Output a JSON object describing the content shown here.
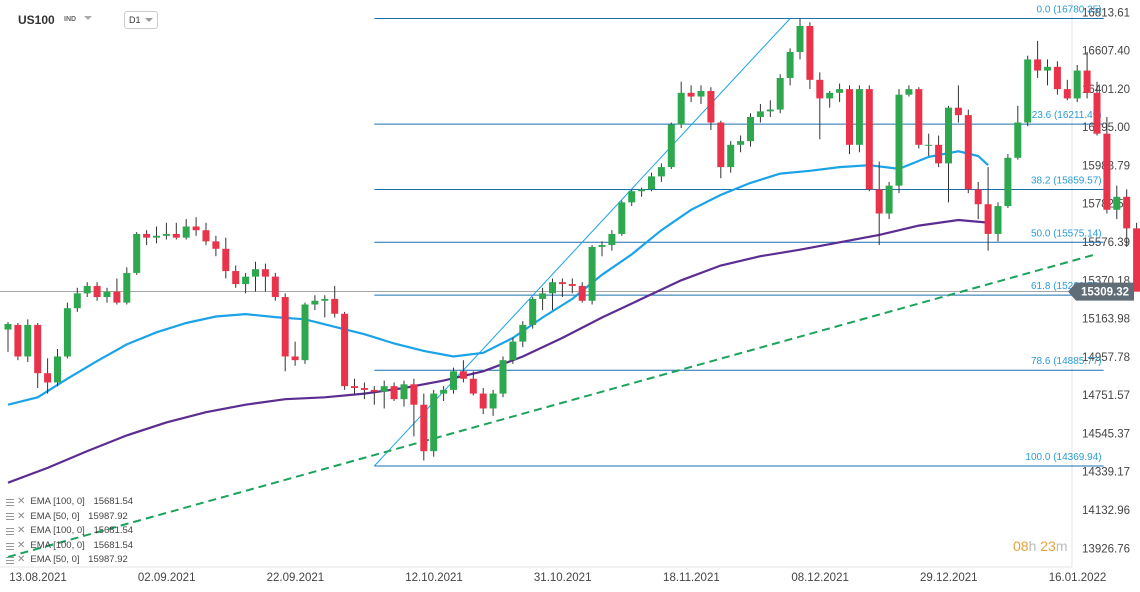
{
  "header": {
    "symbol": "US100",
    "instrument_type": "IND",
    "timeframe": "D1"
  },
  "countdown": {
    "hours": "08",
    "h_label": "h",
    "minutes": "23",
    "m_label": "m"
  },
  "colors": {
    "up": "#2ea84f",
    "down": "#e8334a",
    "ema50": "#1aa3e8",
    "ema100": "#5b2d91",
    "fib": "#1a6fae",
    "fib_text": "#2a9ad8",
    "trendline": "#1aa35a",
    "price_tag": "#606c76"
  },
  "legend": [
    {
      "label": "EMA [100,  0]",
      "value": "15681.54"
    },
    {
      "label": "EMA [50,  0]",
      "value": "15987.92"
    },
    {
      "label": "EMA [100,  0]",
      "value": "15681.54"
    },
    {
      "label": "EMA [100,  0]",
      "value": "15681.54"
    },
    {
      "label": "EMA [50,  0]",
      "value": "15987.92"
    }
  ],
  "chart_data": {
    "type": "candlestick",
    "title": "US100",
    "timeframe": "D1",
    "ylim": [
      13826,
      16880
    ],
    "y_ticks": [
      "16813.61",
      "16607.40",
      "16401.20",
      "16195.00",
      "15988.79",
      "15782.59",
      "15576.39",
      "15370.18",
      "15163.98",
      "14957.78",
      "14751.57",
      "14545.37",
      "14339.17",
      "14132.96",
      "13926.76"
    ],
    "x_ticks": [
      {
        "label": "13.08.2021",
        "i": 0
      },
      {
        "label": "02.09.2021",
        "i": 13
      },
      {
        "label": "22.09.2021",
        "i": 26
      },
      {
        "label": "12.10.2021",
        "i": 40
      },
      {
        "label": "31.10.2021",
        "i": 53
      },
      {
        "label": "18.11.2021",
        "i": 66
      },
      {
        "label": "08.12.2021",
        "i": 79
      },
      {
        "label": "29.12.2021",
        "i": 92
      },
      {
        "label": "16.01.2022",
        "i": 105
      }
    ],
    "current_price": "15309.32",
    "candles": [
      [
        15105,
        15145,
        14985,
        15135
      ],
      [
        15130,
        15140,
        14940,
        14960
      ],
      [
        14960,
        15160,
        14930,
        15130
      ],
      [
        15130,
        15140,
        14790,
        14870
      ],
      [
        14870,
        14950,
        14760,
        14820
      ],
      [
        14820,
        15000,
        14800,
        14960
      ],
      [
        14960,
        15250,
        14950,
        15220
      ],
      [
        15220,
        15330,
        15200,
        15300
      ],
      [
        15300,
        15360,
        15280,
        15340
      ],
      [
        15340,
        15360,
        15260,
        15280
      ],
      [
        15280,
        15330,
        15250,
        15310
      ],
      [
        15310,
        15380,
        15240,
        15250
      ],
      [
        15250,
        15440,
        15240,
        15410
      ],
      [
        15410,
        15630,
        15400,
        15620
      ],
      [
        15620,
        15640,
        15560,
        15600
      ],
      [
        15600,
        15660,
        15570,
        15610
      ],
      [
        15610,
        15680,
        15590,
        15620
      ],
      [
        15620,
        15680,
        15590,
        15600
      ],
      [
        15600,
        15700,
        15590,
        15660
      ],
      [
        15660,
        15710,
        15610,
        15640
      ],
      [
        15640,
        15680,
        15560,
        15580
      ],
      [
        15580,
        15610,
        15500,
        15540
      ],
      [
        15540,
        15600,
        15380,
        15420
      ],
      [
        15420,
        15450,
        15330,
        15350
      ],
      [
        15350,
        15410,
        15300,
        15390
      ],
      [
        15390,
        15470,
        15310,
        15430
      ],
      [
        15430,
        15460,
        15310,
        15390
      ],
      [
        15390,
        15410,
        15260,
        15280
      ],
      [
        15280,
        15300,
        14880,
        14960
      ],
      [
        14960,
        15040,
        14910,
        14940
      ],
      [
        14940,
        15250,
        14920,
        15240
      ],
      [
        15240,
        15290,
        15210,
        15260
      ],
      [
        15260,
        15290,
        15170,
        15270
      ],
      [
        15270,
        15340,
        15170,
        15190
      ],
      [
        15190,
        15200,
        14780,
        14800
      ],
      [
        14800,
        14840,
        14760,
        14790
      ],
      [
        14790,
        14820,
        14730,
        14780
      ],
      [
        14780,
        14800,
        14700,
        14770
      ],
      [
        14770,
        14830,
        14680,
        14800
      ],
      [
        14800,
        14820,
        14720,
        14730
      ],
      [
        14730,
        14830,
        14690,
        14810
      ],
      [
        14810,
        14840,
        14530,
        14700
      ],
      [
        14700,
        14760,
        14400,
        14450
      ],
      [
        14450,
        14780,
        14420,
        14760
      ],
      [
        14760,
        14800,
        14720,
        14780
      ],
      [
        14780,
        14900,
        14760,
        14880
      ],
      [
        14880,
        14940,
        14820,
        14840
      ],
      [
        14840,
        14880,
        14750,
        14760
      ],
      [
        14760,
        14790,
        14650,
        14680
      ],
      [
        14680,
        14780,
        14640,
        14760
      ],
      [
        14760,
        14960,
        14740,
        14940
      ],
      [
        14940,
        15060,
        14920,
        15040
      ],
      [
        15040,
        15150,
        15010,
        15130
      ],
      [
        15130,
        15280,
        15110,
        15270
      ],
      [
        15270,
        15330,
        15210,
        15300
      ],
      [
        15300,
        15380,
        15210,
        15360
      ],
      [
        15360,
        15380,
        15280,
        15350
      ],
      [
        15350,
        15380,
        15300,
        15340
      ],
      [
        15340,
        15360,
        15250,
        15260
      ],
      [
        15260,
        15560,
        15240,
        15550
      ],
      [
        15550,
        15580,
        15500,
        15560
      ],
      [
        15560,
        15640,
        15530,
        15620
      ],
      [
        15620,
        15800,
        15610,
        15790
      ],
      [
        15790,
        15860,
        15770,
        15850
      ],
      [
        15850,
        15870,
        15820,
        15860
      ],
      [
        15860,
        15950,
        15850,
        15930
      ],
      [
        15930,
        16000,
        15900,
        15980
      ],
      [
        15980,
        16220,
        15970,
        16210
      ],
      [
        16210,
        16440,
        16190,
        16380
      ],
      [
        16380,
        16420,
        16330,
        16360
      ],
      [
        16360,
        16420,
        16320,
        16390
      ],
      [
        16390,
        16410,
        16180,
        16220
      ],
      [
        16220,
        16230,
        15920,
        15980
      ],
      [
        15980,
        16120,
        15950,
        16100
      ],
      [
        16100,
        16150,
        16060,
        16120
      ],
      [
        16120,
        16270,
        16090,
        16250
      ],
      [
        16250,
        16320,
        16220,
        16280
      ],
      [
        16280,
        16340,
        16250,
        16290
      ],
      [
        16290,
        16480,
        16270,
        16460
      ],
      [
        16460,
        16620,
        16420,
        16600
      ],
      [
        16600,
        16780,
        16560,
        16740
      ],
      [
        16740,
        16760,
        16400,
        16450
      ],
      [
        16450,
        16490,
        16130,
        16350
      ],
      [
        16350,
        16390,
        16300,
        16380
      ],
      [
        16380,
        16430,
        16330,
        16400
      ],
      [
        16400,
        16420,
        16050,
        16100
      ],
      [
        16100,
        16420,
        16060,
        16400
      ],
      [
        16400,
        16420,
        15850,
        15860
      ],
      [
        15860,
        16010,
        15560,
        15730
      ],
      [
        15730,
        15900,
        15700,
        15880
      ],
      [
        15880,
        16400,
        15840,
        16370
      ],
      [
        16370,
        16420,
        16360,
        16400
      ],
      [
        16400,
        16410,
        16080,
        16100
      ],
      [
        16100,
        16160,
        16040,
        16100
      ],
      [
        16100,
        16150,
        15980,
        16000
      ],
      [
        16000,
        16310,
        15790,
        16300
      ],
      [
        16300,
        16420,
        16220,
        16260
      ],
      [
        16260,
        16290,
        15840,
        15860
      ],
      [
        15860,
        15900,
        15700,
        15780
      ],
      [
        15780,
        15980,
        15530,
        15620
      ],
      [
        15620,
        15790,
        15580,
        15770
      ],
      [
        15770,
        16050,
        15760,
        16030
      ],
      [
        16030,
        16310,
        16020,
        16220
      ],
      [
        16220,
        16580,
        16200,
        16560
      ],
      [
        16560,
        16660,
        16460,
        16500
      ],
      [
        16500,
        16560,
        16420,
        16520
      ],
      [
        16520,
        16550,
        16370,
        16400
      ],
      [
        16400,
        16450,
        16340,
        16350
      ],
      [
        16350,
        16530,
        16330,
        16500
      ],
      [
        16500,
        16600,
        16350,
        16380
      ],
      [
        16380,
        16440,
        16150,
        16160
      ],
      [
        16160,
        16250,
        15730,
        15750
      ],
      [
        15750,
        15880,
        15700,
        15820
      ],
      [
        15820,
        15860,
        15550,
        15650
      ],
      [
        15650,
        15680,
        15309,
        15309
      ]
    ],
    "ema50": [
      [
        0,
        14700
      ],
      [
        3,
        14740
      ],
      [
        6,
        14840
      ],
      [
        9,
        14935
      ],
      [
        12,
        15025
      ],
      [
        15,
        15090
      ],
      [
        18,
        15140
      ],
      [
        21,
        15175
      ],
      [
        24,
        15188
      ],
      [
        27,
        15172
      ],
      [
        30,
        15160
      ],
      [
        33,
        15120
      ],
      [
        36,
        15080
      ],
      [
        39,
        15030
      ],
      [
        42,
        14990
      ],
      [
        45,
        14960
      ],
      [
        48,
        14980
      ],
      [
        51,
        15060
      ],
      [
        54,
        15170
      ],
      [
        57,
        15270
      ],
      [
        60,
        15400
      ],
      [
        63,
        15510
      ],
      [
        66,
        15640
      ],
      [
        69,
        15750
      ],
      [
        72,
        15830
      ],
      [
        75,
        15895
      ],
      [
        78,
        15945
      ],
      [
        81,
        15960
      ],
      [
        84,
        15980
      ],
      [
        87,
        15990
      ],
      [
        90,
        15970
      ],
      [
        93,
        16035
      ],
      [
        96,
        16065
      ],
      [
        98,
        16040
      ],
      [
        99,
        15990
      ]
    ],
    "ema100": [
      [
        0,
        14280
      ],
      [
        4,
        14360
      ],
      [
        8,
        14450
      ],
      [
        12,
        14535
      ],
      [
        16,
        14605
      ],
      [
        20,
        14660
      ],
      [
        24,
        14700
      ],
      [
        28,
        14730
      ],
      [
        32,
        14740
      ],
      [
        36,
        14760
      ],
      [
        40,
        14790
      ],
      [
        44,
        14830
      ],
      [
        48,
        14880
      ],
      [
        52,
        14960
      ],
      [
        56,
        15060
      ],
      [
        60,
        15170
      ],
      [
        64,
        15270
      ],
      [
        68,
        15370
      ],
      [
        72,
        15450
      ],
      [
        76,
        15500
      ],
      [
        80,
        15535
      ],
      [
        84,
        15575
      ],
      [
        88,
        15615
      ],
      [
        92,
        15665
      ],
      [
        96,
        15695
      ],
      [
        99,
        15681
      ]
    ],
    "fib_levels": [
      {
        "label": "0.0 (16780.35)",
        "value": 16780.35
      },
      {
        "label": "23.6 (16211.49)",
        "value": 16211.49
      },
      {
        "label": "38.2 (15859.57)",
        "value": 15859.57
      },
      {
        "label": "50.0 (15575.14)",
        "value": 15575.14
      },
      {
        "label": "61.8 (15290.72)",
        "value": 15290.72
      },
      {
        "label": "78.6 (14885.77)",
        "value": 14885.77
      },
      {
        "label": "100.0 (14369.94)",
        "value": 14369.94
      }
    ],
    "fib_anchor": {
      "low_i": 37,
      "low": 14369.94,
      "high_i": 79,
      "high": 16780.35,
      "end_i": 104
    },
    "trendline": {
      "start_i": 0,
      "start": 13880,
      "end_i": 104,
      "end": 15510
    }
  }
}
